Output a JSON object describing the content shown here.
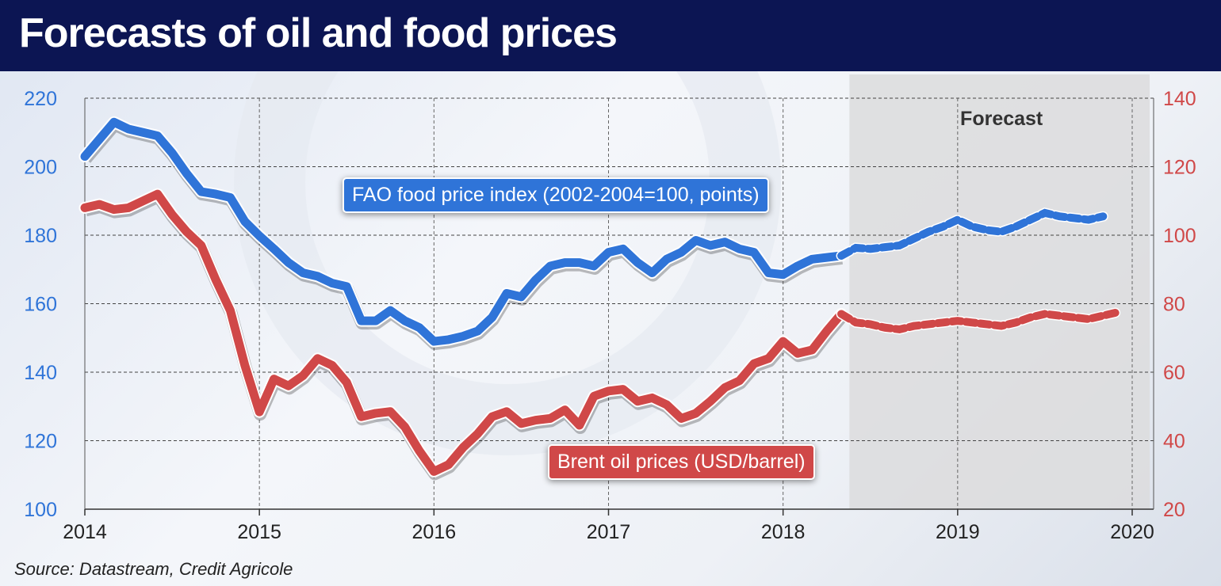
{
  "title": "Forecasts of oil and food prices",
  "source": "Source: Datastream, Credit Agricole",
  "colors": {
    "food": "#2f74d8",
    "oil": "#d04848",
    "title_bg": "#0c1553",
    "forecast_bg": "#dcdcdd"
  },
  "chart_data": {
    "type": "line",
    "title": "Forecasts of oil and food prices",
    "xlabel": "",
    "ylabel_left": "",
    "ylabel_right": "",
    "x_ticks": [
      "2014",
      "2015",
      "2016",
      "2017",
      "2018",
      "2019",
      "2020"
    ],
    "xlim": [
      2014,
      2020
    ],
    "y_left": {
      "lim": [
        100,
        220
      ],
      "ticks": [
        "100",
        "120",
        "140",
        "160",
        "180",
        "200",
        "220"
      ]
    },
    "y_right": {
      "lim": [
        20,
        140
      ],
      "ticks": [
        "20",
        "40",
        "60",
        "80",
        "100",
        "120",
        "140"
      ]
    },
    "grid": true,
    "forecast_region": {
      "label": "Forecast",
      "start": 2018.38,
      "end": 2020.1
    },
    "x_start": 2014.0,
    "x_step_months": 1,
    "forecast_start_index": 53,
    "series": [
      {
        "name": "FAO food price index (2002-2004=100, points)",
        "axis": "left",
        "values": [
          203,
          208,
          213,
          211,
          210,
          209,
          204,
          198,
          192.7,
          192,
          191,
          184,
          179.8,
          176,
          172,
          169,
          168,
          166,
          165,
          155,
          155,
          158,
          155,
          153,
          149,
          149.5,
          150.5,
          152,
          156,
          163,
          162,
          167,
          171,
          172,
          172,
          171,
          175,
          176,
          172,
          169,
          173,
          175,
          178.5,
          177,
          178,
          176,
          175,
          169,
          168.5,
          171,
          173,
          173.5,
          174,
          176.3,
          176,
          176.5,
          177,
          179,
          181,
          182.5,
          184.5,
          182.5,
          181.5,
          181,
          182.5,
          184.5,
          186.5,
          185.5,
          185,
          184.5,
          185.5
        ]
      },
      {
        "name": "Brent oil prices (USD/barrel)",
        "axis": "right",
        "values": [
          108,
          109,
          107.5,
          108,
          110,
          112,
          106,
          101,
          97,
          87,
          78,
          62,
          48.4,
          58,
          56,
          59,
          64,
          62,
          57,
          47,
          48,
          48.5,
          44,
          37,
          31,
          33,
          38,
          42,
          47,
          48.5,
          45,
          46,
          46.5,
          49,
          44.5,
          53,
          54.5,
          55,
          51.5,
          52.5,
          50.5,
          46.5,
          48,
          51.5,
          55.5,
          57.5,
          62.5,
          64,
          69,
          65.5,
          66.5,
          72,
          77,
          74.5,
          74,
          73,
          72.5,
          73.5,
          74,
          74.5,
          75,
          74.5,
          74,
          73.5,
          74.5,
          76,
          77,
          76.5,
          76,
          75.5,
          76.5,
          77.5
        ]
      }
    ]
  }
}
